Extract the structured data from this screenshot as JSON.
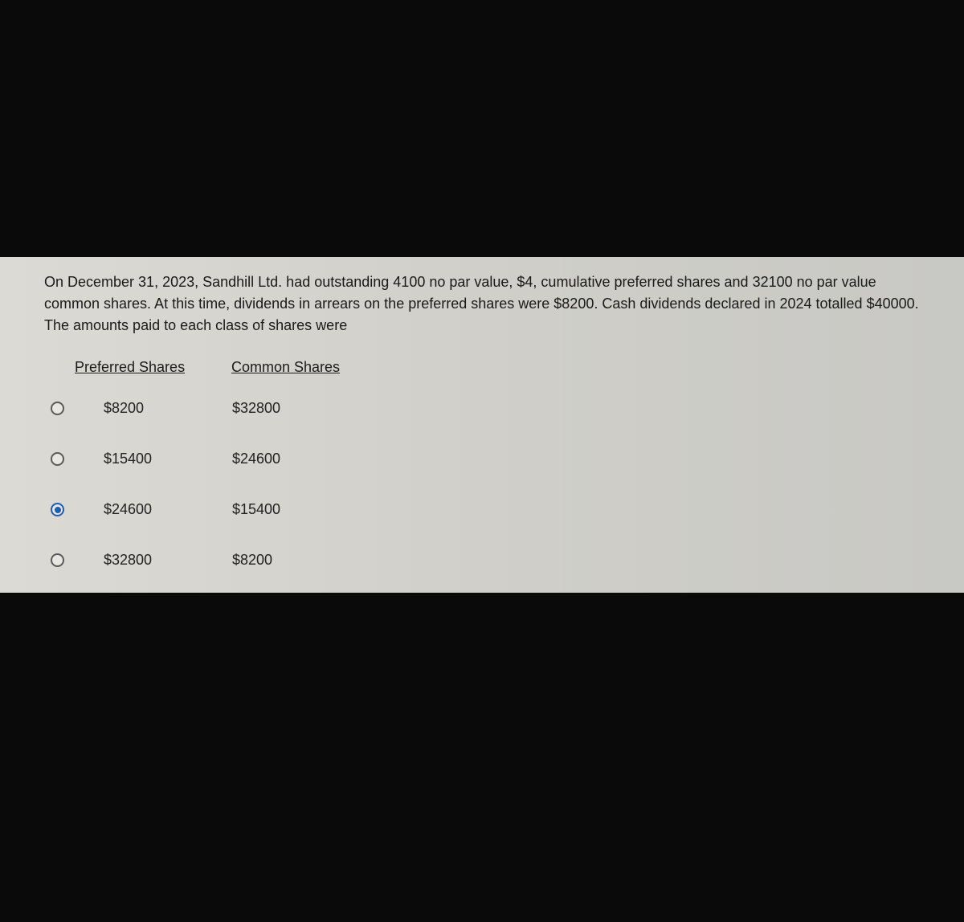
{
  "question": {
    "text": "On December 31, 2023, Sandhill Ltd. had outstanding 4100 no par value, $4, cumulative preferred shares and 32100 no par value common shares. At this time, dividends in arrears on the preferred shares were $8200. Cash dividends declared in 2024 totalled $40000. The amounts paid to each class of shares were"
  },
  "headers": {
    "preferred": "Preferred Shares",
    "common": "Common Shares"
  },
  "options": [
    {
      "preferred": "$8200",
      "common": "$32800",
      "selected": false
    },
    {
      "preferred": "$15400",
      "common": "$24600",
      "selected": false
    },
    {
      "preferred": "$24600",
      "common": "$15400",
      "selected": true
    },
    {
      "preferred": "$32800",
      "common": "$8200",
      "selected": false
    }
  ],
  "colors": {
    "page_background": "#0a0a0a",
    "panel_background": "#d8d7d1",
    "text_color": "#1a1a1a",
    "radio_border": "#5a5a5a",
    "radio_selected": "#1f5db3"
  },
  "typography": {
    "question_fontsize": 18,
    "header_fontsize": 18,
    "option_fontsize": 18
  }
}
